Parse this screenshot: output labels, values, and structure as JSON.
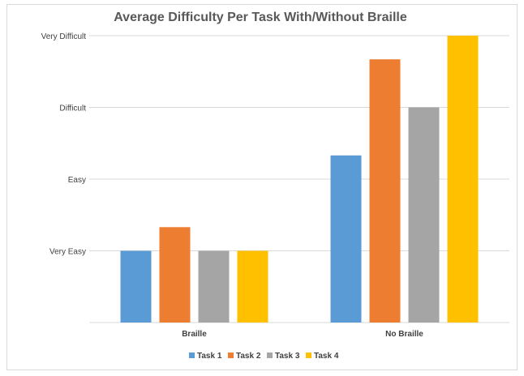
{
  "chart_data": {
    "type": "bar",
    "title": "Average Difficulty Per Task With/Without Braille",
    "xlabel": "",
    "ylabel": "",
    "categories": [
      "Braille",
      "No Braille"
    ],
    "y_tick_labels": [
      "Very Easy",
      "Easy",
      "Difficult",
      "Very Difficult"
    ],
    "y_tick_values": [
      1,
      2,
      3,
      4
    ],
    "ylim": [
      0,
      4
    ],
    "grid": true,
    "legend_position": "bottom",
    "series": [
      {
        "name": "Task 1",
        "color": "#5b9bd5",
        "values": [
          1.0,
          2.33
        ]
      },
      {
        "name": "Task 2",
        "color": "#ed7d31",
        "values": [
          1.33,
          3.67
        ]
      },
      {
        "name": "Task 3",
        "color": "#a5a5a5",
        "values": [
          1.0,
          3.0
        ]
      },
      {
        "name": "Task 4",
        "color": "#ffc000",
        "values": [
          1.0,
          4.0
        ]
      }
    ]
  }
}
